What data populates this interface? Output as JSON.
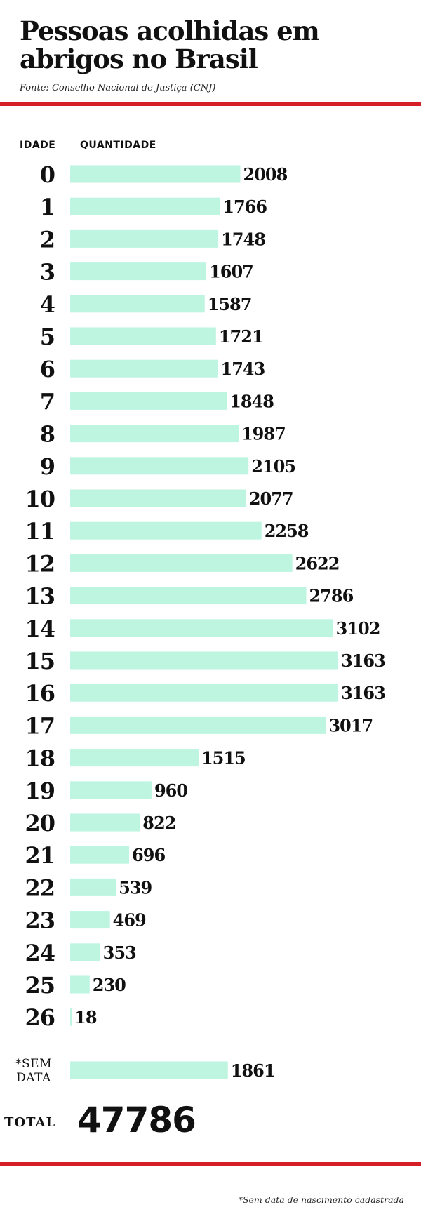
{
  "title_line1": "Pessoas acolhidas em",
  "title_line2": "abrigos no Brasil",
  "source": "Fonte: Conselho Nacional de Justiça (CNJ)",
  "footnote": "*Sem data de nascimento cadastrada",
  "total": {
    "label": "TOTAL",
    "value": "47786"
  },
  "colors": {
    "bar": "#bdf5e1",
    "rule": "#d41f26",
    "text": "#111111"
  },
  "chart_data": {
    "type": "bar",
    "orientation": "horizontal",
    "xlabel": "QUANTIDADE",
    "ylabel": "IDADE",
    "categories": [
      "0",
      "1",
      "2",
      "3",
      "4",
      "5",
      "6",
      "7",
      "8",
      "9",
      "10",
      "11",
      "12",
      "13",
      "14",
      "15",
      "16",
      "17",
      "18",
      "19",
      "20",
      "21",
      "22",
      "23",
      "24",
      "25",
      "26",
      "*SEM DATA"
    ],
    "values": [
      2008,
      1766,
      1748,
      1607,
      1587,
      1721,
      1743,
      1848,
      1987,
      2105,
      2077,
      2258,
      2622,
      2786,
      3102,
      3163,
      3163,
      3017,
      1515,
      960,
      822,
      696,
      539,
      469,
      353,
      230,
      18,
      1861
    ],
    "grid": false
  }
}
